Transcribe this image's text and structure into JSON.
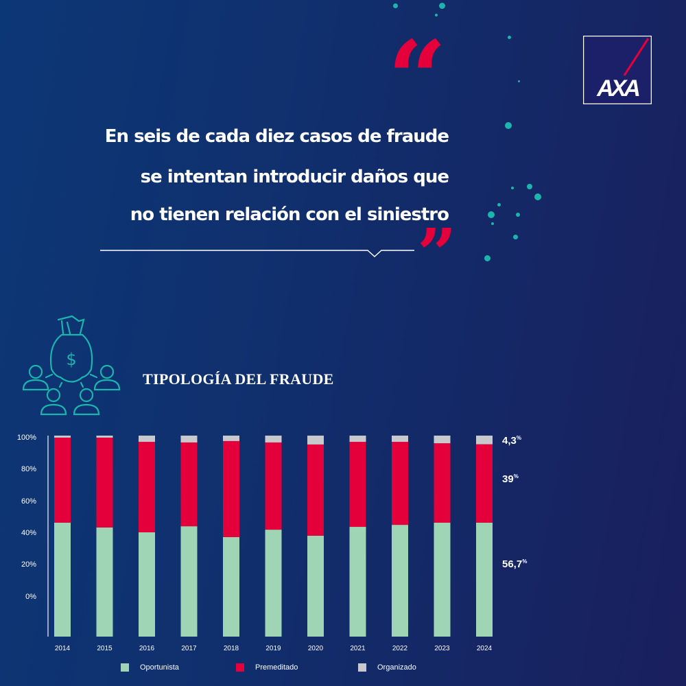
{
  "quote": {
    "lines": [
      "En seis de cada diez casos de fraude",
      "se intentan introducir daños que",
      "no tienen relación con el siniestro"
    ],
    "open_mark": "“",
    "close_mark": "”"
  },
  "logo": {
    "text": "AXA"
  },
  "colors": {
    "opportunist": "#9fd4b5",
    "premeditated": "#e4003a",
    "organized": "#c8c9cc",
    "accent_teal": "#1bb5ae"
  },
  "chart_data": {
    "type": "bar",
    "stacked": true,
    "title": "TIPOLOGÍA DEL FRAUDE",
    "categories": [
      "2014",
      "2015",
      "2016",
      "2017",
      "2018",
      "2019",
      "2020",
      "2021",
      "2022",
      "2023",
      "2024"
    ],
    "series": [
      {
        "name": "Oportunista",
        "values": [
          56.7,
          54.3,
          51.9,
          54.9,
          49.5,
          53.2,
          50.2,
          54.6,
          55.6,
          56.7,
          56.7
        ]
      },
      {
        "name": "Premeditado",
        "values": [
          42.3,
          44.7,
          45.0,
          41.7,
          47.8,
          43.4,
          45.4,
          42.3,
          41.3,
          39.5,
          39.0
        ]
      },
      {
        "name": "Organizado",
        "values": [
          1.0,
          1.0,
          3.1,
          3.4,
          2.7,
          3.4,
          4.4,
          3.1,
          3.1,
          3.8,
          4.3
        ]
      }
    ],
    "yticks": [
      "100%",
      "80%",
      "60%",
      "40%",
      "20%",
      "0%"
    ],
    "ylim": [
      0,
      100
    ],
    "end_labels": [
      {
        "value": "4,3",
        "unit": "%"
      },
      {
        "value": "39",
        "unit": "%"
      },
      {
        "value": "56,7",
        "unit": "%"
      }
    ],
    "legend": [
      "Oportunista",
      "Premeditado",
      "Organizado"
    ],
    "legend_position": "bottom"
  }
}
